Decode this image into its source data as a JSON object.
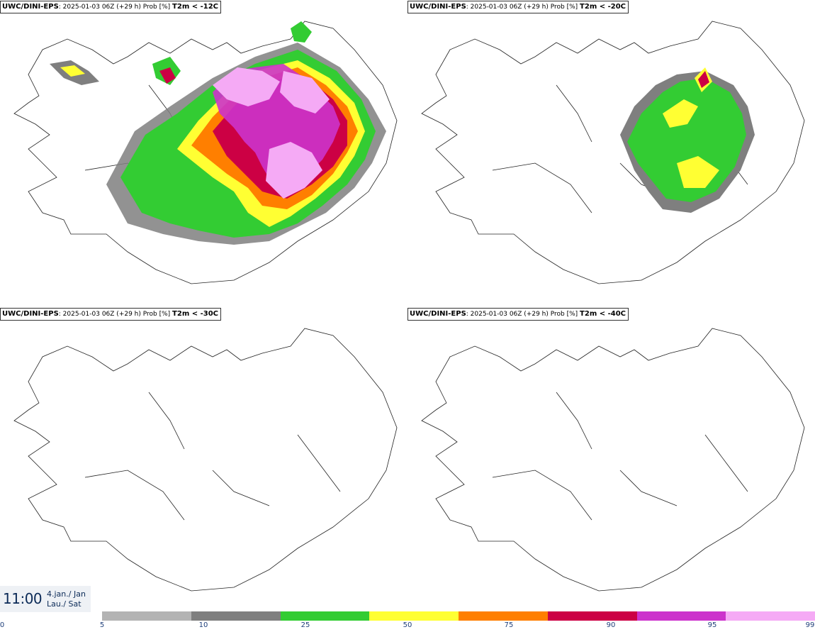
{
  "panels": [
    {
      "model": "UWC/DINI-EPS",
      "run_info": ": 2025-01-03 06Z (+29 h) Prob [%]",
      "variable": "T2m < -12C"
    },
    {
      "model": "UWC/DINI-EPS",
      "run_info": ": 2025-01-03 06Z (+29 h) Prob [%]",
      "variable": "T2m < -20C"
    },
    {
      "model": "UWC/DINI-EPS",
      "run_info": ": 2025-01-03 06Z (+29 h) Prob [%]",
      "variable": "T2m < -30C"
    },
    {
      "model": "UWC/DINI-EPS",
      "run_info": ": 2025-01-03 06Z (+29 h) Prob [%]",
      "variable": "T2m < -40C"
    }
  ],
  "time": {
    "clock": "11:00",
    "date_line1": "4.jan./ Jan",
    "date_line2": "Lau./ Sat"
  },
  "legend": {
    "ticks": [
      "0",
      "5",
      "10",
      "25",
      "50",
      "75",
      "90",
      "95",
      "99"
    ],
    "colors": [
      "#b3b3b3",
      "#7f7f7f",
      "#33cc33",
      "#ffff33",
      "#ff7f00",
      "#cc0044",
      "#cc33cc",
      "#f5aaf5"
    ]
  }
}
